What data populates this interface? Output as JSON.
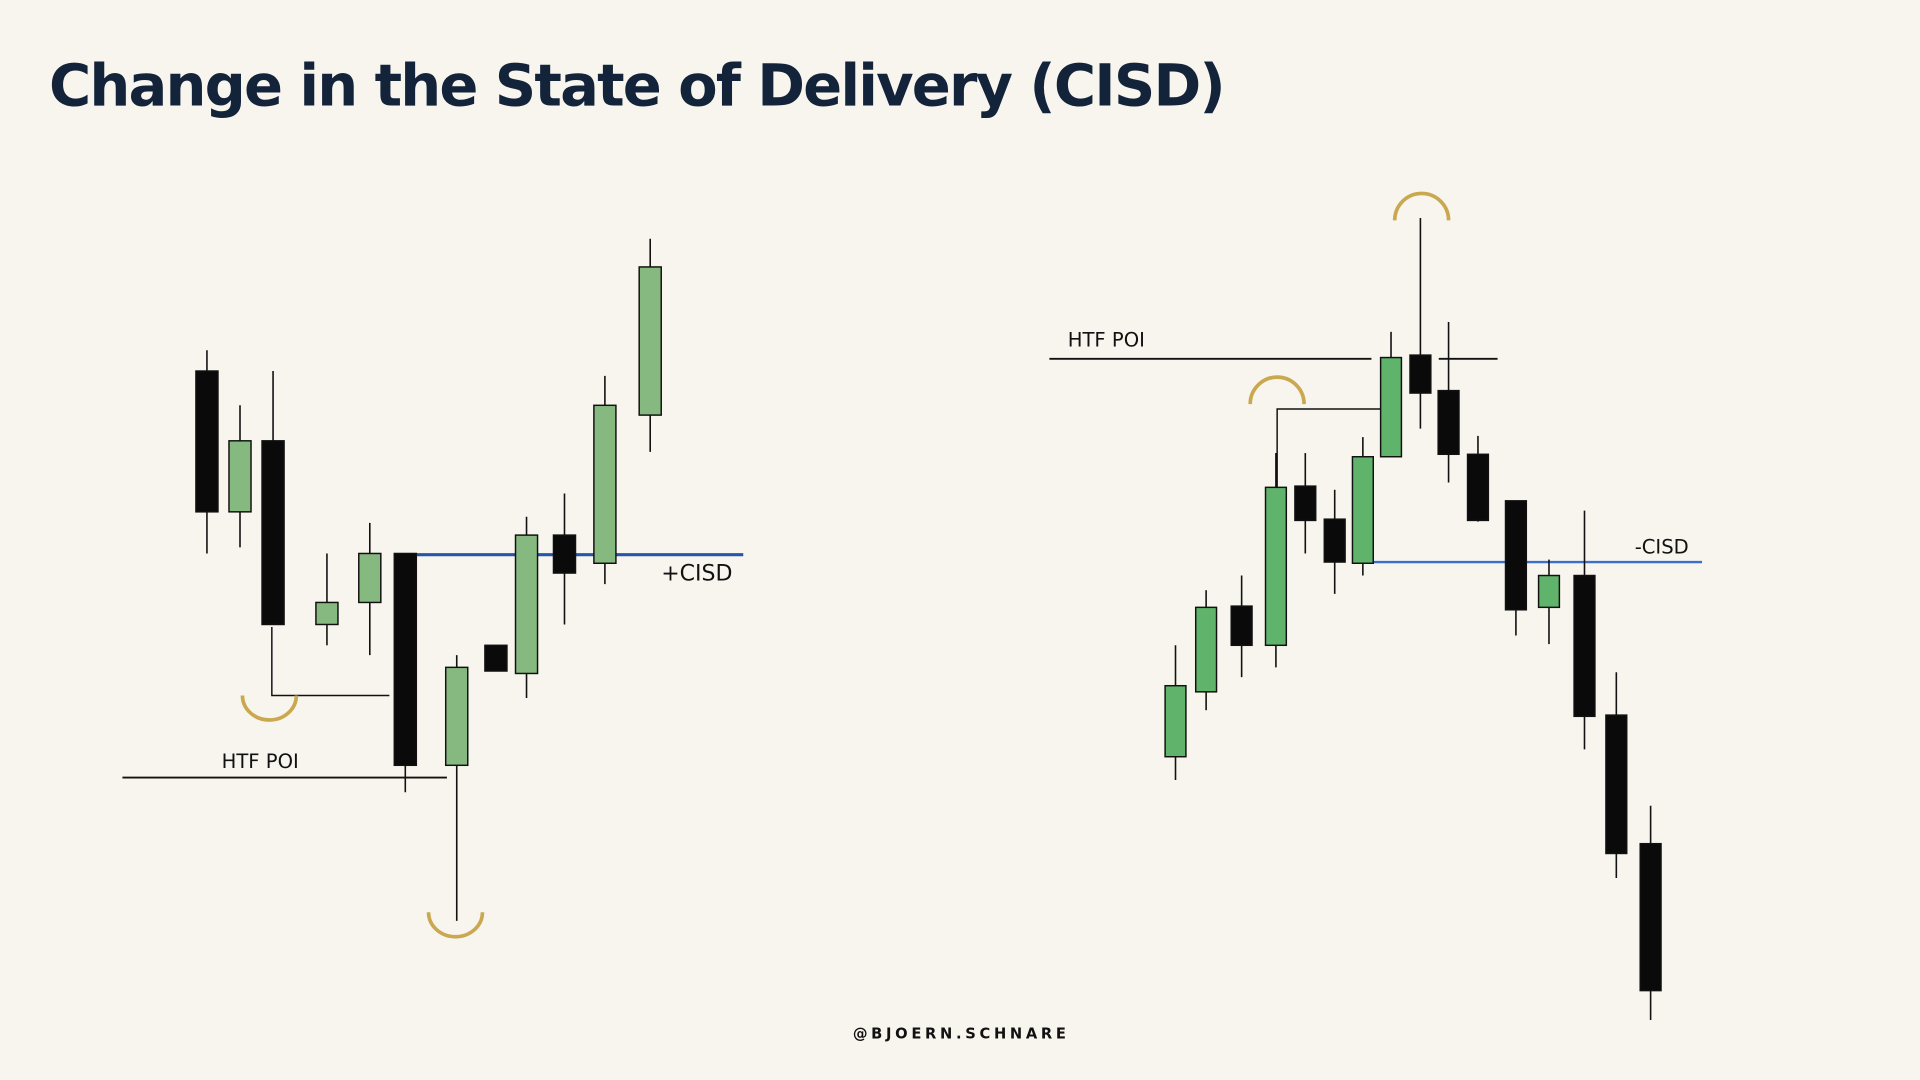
{
  "header": {
    "title": "Change in the State of Delivery (CISD)"
  },
  "left_diagram": {
    "poi_label": "HTF POI",
    "cisd_label": "+CISD"
  },
  "right_diagram": {
    "poi_label": "HTF POI",
    "cisd_label": "-CISD"
  },
  "footer": {
    "handle": "@BJOERN.SCHNARE"
  }
}
